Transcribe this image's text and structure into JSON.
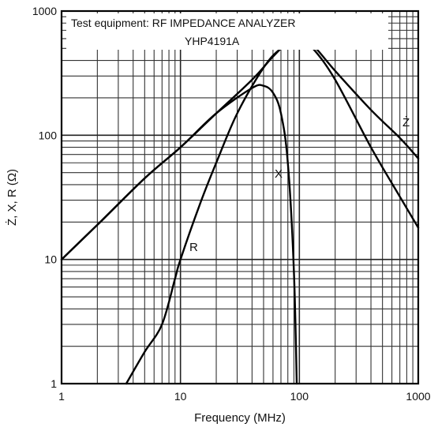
{
  "chart_data": {
    "type": "line",
    "xscale": "log",
    "yscale": "log",
    "xlim": [
      1,
      1000
    ],
    "ylim": [
      1,
      1000
    ],
    "xlabel": "Frequency (MHz)",
    "ylabel": "Ż, X, R (Ω)",
    "x_ticks": [
      "1",
      "10",
      "100",
      "1000"
    ],
    "y_ticks": [
      "1",
      "10",
      "100",
      "1000"
    ],
    "grid": true,
    "annotations": [
      "Test equipment: RF IMPEDANCE ANALYZER",
      "YHP4191A"
    ],
    "series": [
      {
        "name": "Ż",
        "x": [
          1,
          2,
          5,
          10,
          20,
          40,
          60,
          80,
          100,
          130,
          200,
          400,
          700,
          1000
        ],
        "y": [
          10,
          19,
          45,
          80,
          150,
          280,
          430,
          560,
          600,
          530,
          330,
          160,
          95,
          65
        ]
      },
      {
        "name": "X",
        "x": [
          1,
          2,
          5,
          10,
          20,
          40,
          50,
          60,
          70,
          80,
          90,
          95
        ],
        "y": [
          10,
          19,
          45,
          80,
          150,
          240,
          250,
          220,
          150,
          60,
          8,
          1
        ]
      },
      {
        "name": "R",
        "x": [
          3.5,
          5,
          7,
          9,
          10,
          15,
          20,
          30,
          50,
          70,
          100,
          130,
          200,
          400,
          700,
          1000
        ],
        "y": [
          1,
          1.8,
          3,
          7,
          10,
          30,
          60,
          150,
          350,
          500,
          600,
          500,
          280,
          80,
          32,
          18
        ]
      }
    ]
  }
}
